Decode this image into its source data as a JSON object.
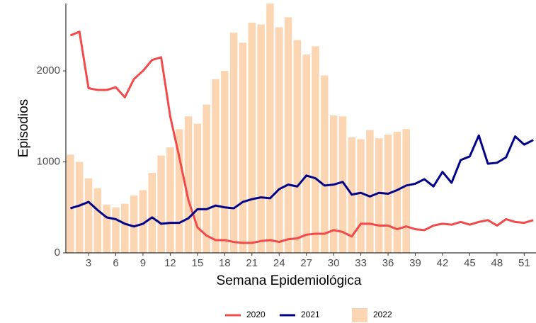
{
  "chart_data": {
    "type": "combo",
    "x_label": "Semana Epidemiológica",
    "y_label": "Episodios",
    "x": [
      1,
      2,
      3,
      4,
      5,
      6,
      7,
      8,
      9,
      10,
      11,
      12,
      13,
      14,
      15,
      16,
      17,
      18,
      19,
      20,
      21,
      22,
      23,
      24,
      25,
      26,
      27,
      28,
      29,
      30,
      31,
      32,
      33,
      34,
      35,
      36,
      37,
      38,
      39,
      40,
      41,
      42,
      43,
      44,
      45,
      46,
      47,
      48,
      49,
      50,
      51,
      52
    ],
    "xlim": [
      0.5,
      52.3
    ],
    "xticks": [
      3,
      6,
      9,
      12,
      15,
      18,
      21,
      24,
      27,
      30,
      33,
      36,
      39,
      42,
      45,
      48,
      51
    ],
    "ylim": [
      0,
      2740
    ],
    "yticks": [
      0,
      1000,
      2000
    ],
    "grid": false,
    "legend": "bottom",
    "series": [
      {
        "name": "2022",
        "kind": "bar",
        "color": "#fcd6b2",
        "values": [
          1080,
          1000,
          820,
          710,
          530,
          500,
          540,
          630,
          690,
          880,
          1070,
          1160,
          1360,
          1500,
          1420,
          1630,
          1910,
          2000,
          2420,
          2310,
          2530,
          2510,
          2740,
          2480,
          2590,
          2340,
          2180,
          2270,
          1950,
          1510,
          1500,
          1270,
          1250,
          1350,
          1260,
          1300,
          1330,
          1360,
          null,
          null,
          null,
          null,
          null,
          null,
          null,
          null,
          null,
          null,
          null,
          null,
          null,
          null
        ]
      },
      {
        "name": "2020",
        "kind": "line",
        "color": "#f4494a",
        "values": [
          2390,
          2430,
          1810,
          1790,
          1790,
          1820,
          1710,
          1910,
          2000,
          2120,
          2150,
          1500,
          1050,
          580,
          280,
          190,
          140,
          140,
          120,
          110,
          110,
          130,
          140,
          120,
          150,
          160,
          200,
          210,
          210,
          250,
          230,
          180,
          320,
          320,
          300,
          300,
          260,
          290,
          260,
          250,
          300,
          320,
          310,
          340,
          310,
          340,
          360,
          300,
          370,
          340,
          330,
          360
        ]
      },
      {
        "name": "2021",
        "kind": "line",
        "color": "#00008b",
        "values": [
          490,
          520,
          560,
          470,
          390,
          370,
          320,
          290,
          320,
          390,
          320,
          330,
          330,
          380,
          480,
          480,
          520,
          500,
          490,
          560,
          590,
          610,
          600,
          700,
          750,
          730,
          850,
          820,
          740,
          750,
          780,
          640,
          660,
          620,
          660,
          650,
          690,
          740,
          760,
          810,
          730,
          890,
          770,
          1020,
          1060,
          1290,
          980,
          990,
          1050,
          1280,
          1190,
          1240
        ]
      }
    ]
  }
}
